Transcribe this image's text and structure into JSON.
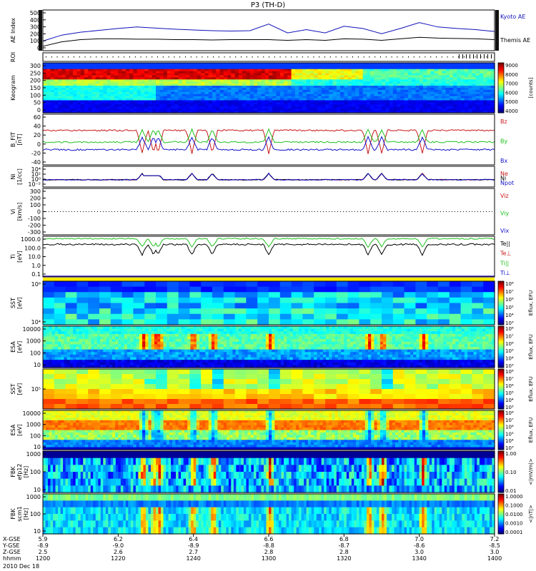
{
  "title": "P3 (TH-D)",
  "footer": {
    "date": "2010 Dec 18",
    "rows": [
      {
        "label": "X-GSE",
        "values": [
          "5.9",
          "6.2",
          "6.4",
          "6.6",
          "6.8",
          "7.0",
          "7.2"
        ]
      },
      {
        "label": "Y-GSE",
        "values": [
          "-8.9",
          "-9.0",
          "-8.9",
          "-8.8",
          "-8.7",
          "-8.6",
          "-8.5"
        ]
      },
      {
        "label": "Z-GSE",
        "values": [
          "2.5",
          "2.6",
          "2.7",
          "2.8",
          "2.8",
          "3.0",
          "3.0"
        ]
      },
      {
        "label": "hhmm",
        "values": [
          "1200",
          "1220",
          "1240",
          "1300",
          "1320",
          "1340",
          "1400"
        ]
      }
    ]
  },
  "chart_data": [
    {
      "id": "ae",
      "type": "line",
      "ylabel": "AE Index",
      "yticks": [
        "500",
        "400",
        "300",
        "200",
        "100",
        "0"
      ],
      "ylim": [
        0,
        550
      ],
      "series": [
        {
          "name": "Kyoto AE",
          "color": "#1010b8",
          "x": [
            0,
            5,
            10,
            15,
            20,
            25,
            30,
            35,
            40,
            45,
            50,
            55,
            60,
            65,
            70,
            75,
            80,
            85,
            90,
            95,
            100,
            105,
            110,
            115,
            120
          ],
          "y": [
            130,
            210,
            250,
            275,
            300,
            320,
            305,
            290,
            280,
            270,
            265,
            270,
            360,
            240,
            285,
            240,
            330,
            300,
            230,
            300,
            380,
            320,
            300,
            285,
            260
          ]
        },
        {
          "name": "Themis AE",
          "color": "#000000",
          "x": [
            0,
            5,
            10,
            15,
            20,
            25,
            30,
            35,
            40,
            45,
            50,
            55,
            60,
            65,
            70,
            75,
            80,
            85,
            90,
            95,
            100,
            105,
            110,
            115,
            120
          ],
          "y": [
            60,
            120,
            150,
            160,
            160,
            155,
            155,
            150,
            150,
            145,
            150,
            150,
            150,
            140,
            150,
            140,
            160,
            155,
            140,
            160,
            180,
            170,
            165,
            160,
            150
          ]
        }
      ]
    },
    {
      "id": "roi",
      "type": "table",
      "ylabel": "ROI"
    },
    {
      "id": "keogram",
      "type": "heatmap",
      "ylabel": "Keogram",
      "yticks": [
        "300",
        "250",
        "200",
        "150",
        "100",
        "50",
        "0"
      ],
      "colorbar": {
        "ticks": [
          "9000",
          "8000",
          "7000",
          "6000",
          "5000",
          "4000"
        ],
        "label": "[counts]"
      }
    },
    {
      "id": "bfield",
      "type": "line",
      "ylabel": "B_FIT",
      "unit": "[nT]",
      "yticks": [
        "60",
        "40",
        "20",
        "0",
        "-20",
        "-40"
      ],
      "ylim": [
        -50,
        60
      ],
      "series": [
        {
          "name": "Bz",
          "color": "#c81818",
          "base": 30
        },
        {
          "name": "By",
          "color": "#20c020",
          "base": 5
        },
        {
          "name": "Bx",
          "color": "#1010c8",
          "base": -12
        }
      ]
    },
    {
      "id": "density",
      "type": "line",
      "ylabel": "Ni",
      "unit": "[1/cc]",
      "yticks": [
        "10⁴",
        "10²",
        "10⁰",
        "10⁻²"
      ],
      "series": [
        {
          "name": "Ne",
          "color": "#c81818"
        },
        {
          "name": "Ni",
          "color": "#000000"
        },
        {
          "name": "Npot",
          "color": "#1010c8"
        }
      ]
    },
    {
      "id": "velocity",
      "type": "line",
      "ylabel": "Vi",
      "unit": "[km/s]",
      "yticks": [
        "300",
        "200",
        "100",
        "0",
        "-100",
        "-200",
        "-300"
      ],
      "series": [
        {
          "name": "Viz",
          "color": "#c81818"
        },
        {
          "name": "Viy",
          "color": "#20c020"
        },
        {
          "name": "Vix",
          "color": "#1010c8"
        }
      ]
    },
    {
      "id": "temperature",
      "type": "line",
      "ylabel": "Ti",
      "unit": "[eV]",
      "yticks": [
        "1000.0",
        "100.0",
        "10.0",
        "1.0",
        "0.1"
      ],
      "series": [
        {
          "name": "Te||",
          "color": "#000000"
        },
        {
          "name": "Te⊥",
          "color": "#c81818"
        },
        {
          "name": "Ti||",
          "color": "#20c020"
        },
        {
          "name": "Ti⊥",
          "color": "#1010c8"
        }
      ]
    },
    {
      "id": "sst_i",
      "type": "heatmap",
      "ylabel": "SST",
      "unit": "[eV]",
      "yticks": [
        "10⁶",
        "10⁴"
      ],
      "colorbar": {
        "ticks": [
          "10⁸",
          "10⁷",
          "10⁶",
          "10⁵",
          "10⁴",
          "10³"
        ],
        "label": "Eflux, EFU"
      }
    },
    {
      "id": "esa_i",
      "type": "heatmap",
      "ylabel": "ESA",
      "unit": "[eV]",
      "yticks": [
        "10000",
        "1000",
        "100",
        "10"
      ],
      "colorbar": {
        "ticks": [
          "10⁸",
          "10⁷",
          "10⁶",
          "10⁵",
          "10⁴",
          "10³"
        ],
        "label": "Eflux, EFU"
      }
    },
    {
      "id": "sst_e",
      "type": "heatmap",
      "ylabel": "SST",
      "unit": "[eV]",
      "yticks": [
        "10⁵"
      ],
      "colorbar": {
        "ticks": [
          "10⁸",
          "10⁷",
          "10⁶",
          "10⁵",
          "10⁴",
          "10³"
        ],
        "label": "Eflux, EFU"
      }
    },
    {
      "id": "esa_e",
      "type": "heatmap",
      "ylabel": "ESA",
      "unit": "[eV]",
      "yticks": [
        "10000",
        "1000",
        "100",
        "10"
      ],
      "colorbar": {
        "ticks": [
          "10⁸",
          "10⁷",
          "10⁶",
          "10⁵",
          "10⁴",
          "10³"
        ],
        "label": "Eflux, EFU"
      }
    },
    {
      "id": "fbk_e",
      "type": "heatmap",
      "ylabel": "FBK",
      "unit": "[Hz]",
      "sublabel": "efp12",
      "yticks": [
        "1000",
        "100",
        "10"
      ],
      "colorbar": {
        "ticks": [
          "1.00",
          "0.10",
          "0.01"
        ],
        "label": "<|mV/m|>"
      }
    },
    {
      "id": "fbk_b",
      "type": "heatmap",
      "ylabel": "FBK",
      "unit": "[Hz]",
      "sublabel": "scm1",
      "yticks": [
        "1000",
        "100",
        "10"
      ],
      "colorbar": {
        "ticks": [
          "1.0000",
          "0.1000",
          "0.0100",
          "0.0010",
          "0.0001"
        ],
        "label": "<|nT|>"
      }
    }
  ]
}
